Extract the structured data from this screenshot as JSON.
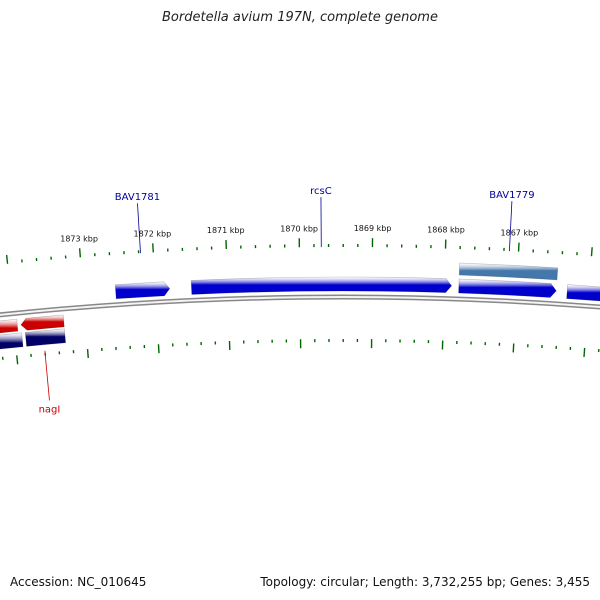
{
  "title": "Bordetella avium 197N, complete genome",
  "accession": {
    "label": "Accession:",
    "value": "NC_010645"
  },
  "stats": {
    "topology_label": "Topology:",
    "topology": "circular",
    "length_label": "Length:",
    "length": "3,732,255 bp",
    "genes_label": "Genes:",
    "genes": "3,455"
  },
  "ruler": {
    "ticks": [
      {
        "kbp": 1873,
        "label": "1873 kbp"
      },
      {
        "kbp": 1872,
        "label": "1872 kbp"
      },
      {
        "kbp": 1871,
        "label": "1871 kbp"
      },
      {
        "kbp": 1870,
        "label": "1870 kbp"
      },
      {
        "kbp": 1869,
        "label": "1869 kbp"
      },
      {
        "kbp": 1868,
        "label": "1868 kbp"
      },
      {
        "kbp": 1867,
        "label": "1867 kbp"
      }
    ]
  },
  "genes": [
    {
      "label": "BAV1781",
      "strand": "forward",
      "color": "#0000cc",
      "start_kbp": 1872.55,
      "end_kbp": 1871.8,
      "labeled": true,
      "label_color": "#000099"
    },
    {
      "label": "rcsC",
      "strand": "forward",
      "color": "#0000cc",
      "start_kbp": 1871.5,
      "end_kbp": 1867.9,
      "labeled": true,
      "label_color": "#000099"
    },
    {
      "label": "BAV1779",
      "strand": "forward",
      "color": "#0000cc",
      "start_kbp": 1867.8,
      "end_kbp": 1866.45,
      "labeled": true,
      "label_color": "#000099"
    },
    {
      "label": "",
      "strand": "forward",
      "color": "#0000cc",
      "start_kbp": 1866.3,
      "end_kbp": 1865.5,
      "labeled": false
    },
    {
      "label": "nagI",
      "strand": "reverse",
      "color": "#cc0000",
      "start_kbp": 1873.3,
      "end_kbp": 1873.9,
      "labeled": true,
      "label_color": "#cc0000"
    },
    {
      "label": "",
      "strand": "reverse",
      "color": "#cc0000",
      "start_kbp": 1873.95,
      "end_kbp": 1875.0,
      "labeled": false
    }
  ],
  "cds_tracks": [
    {
      "strand": "forward",
      "color": "#4477aa",
      "start_kbp": 1867.8,
      "end_kbp": 1866.45
    },
    {
      "strand": "reverse",
      "color": "#000066",
      "start_kbp": 1873.9,
      "end_kbp": 1875.0
    },
    {
      "strand": "reverse",
      "color": "#000066",
      "start_kbp": 1873.3,
      "end_kbp": 1873.85
    }
  ],
  "colors": {
    "backbone": "#888888",
    "tick": "#006600",
    "forward_gene": "#0000cc",
    "reverse_gene": "#cc0000"
  }
}
